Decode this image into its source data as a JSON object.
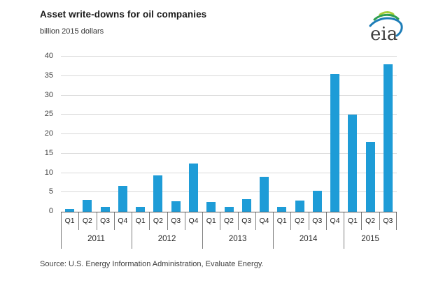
{
  "header": {
    "title": "Asset write-downs for oil companies",
    "subtitle": "billion 2015 dollars"
  },
  "logo": {
    "text": "eia"
  },
  "footer": {
    "source": "Source:  U.S. Energy Information Administration, Evaluate Energy."
  },
  "colors": {
    "bar": "#1E9CD7",
    "gridline": "#D9D9D9",
    "axis_line": "#595959",
    "divider": "#7F7F7F",
    "label_text": "#404040"
  },
  "chart_data": {
    "type": "bar",
    "title": "Asset write-downs for oil companies",
    "ylabel": "billion 2015 dollars",
    "xlabel": "",
    "ylim": [
      0,
      40
    ],
    "yticks": [
      0,
      5,
      10,
      15,
      20,
      25,
      30,
      35,
      40
    ],
    "grid": true,
    "legend": false,
    "groups": [
      {
        "year": "2011",
        "quarters": [
          "Q1",
          "Q2",
          "Q3",
          "Q4"
        ],
        "values": [
          0.8,
          3.0,
          1.2,
          6.6
        ]
      },
      {
        "year": "2012",
        "quarters": [
          "Q1",
          "Q2",
          "Q3",
          "Q4"
        ],
        "values": [
          1.3,
          9.3,
          2.7,
          12.4
        ]
      },
      {
        "year": "2013",
        "quarters": [
          "Q1",
          "Q2",
          "Q3",
          "Q4"
        ],
        "values": [
          2.5,
          1.2,
          3.3,
          9.0
        ]
      },
      {
        "year": "2014",
        "quarters": [
          "Q1",
          "Q2",
          "Q3",
          "Q4"
        ],
        "values": [
          1.3,
          2.9,
          5.4,
          35.5
        ]
      },
      {
        "year": "2015",
        "quarters": [
          "Q1",
          "Q2",
          "Q3"
        ],
        "values": [
          25.1,
          18.0,
          38.0
        ]
      }
    ]
  }
}
